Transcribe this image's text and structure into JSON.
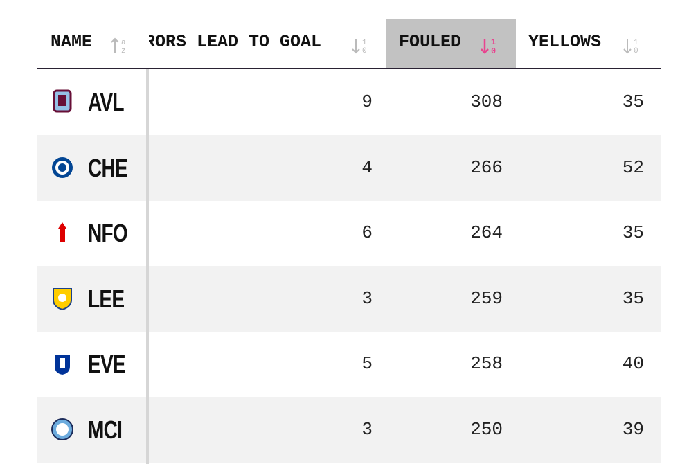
{
  "table": {
    "columns": [
      "NAME",
      "RORS LEAD TO GOAL",
      "FOULED",
      "YELLOWS"
    ],
    "rows": [
      [
        "AVL",
        9,
        308,
        35
      ],
      [
        "CHE",
        4,
        266,
        52
      ],
      [
        "NFO",
        6,
        264,
        35
      ],
      [
        "LEE",
        3,
        259,
        35
      ],
      [
        "EVE",
        5,
        258,
        40
      ],
      [
        "MCI",
        3,
        250,
        39
      ]
    ]
  }
}
